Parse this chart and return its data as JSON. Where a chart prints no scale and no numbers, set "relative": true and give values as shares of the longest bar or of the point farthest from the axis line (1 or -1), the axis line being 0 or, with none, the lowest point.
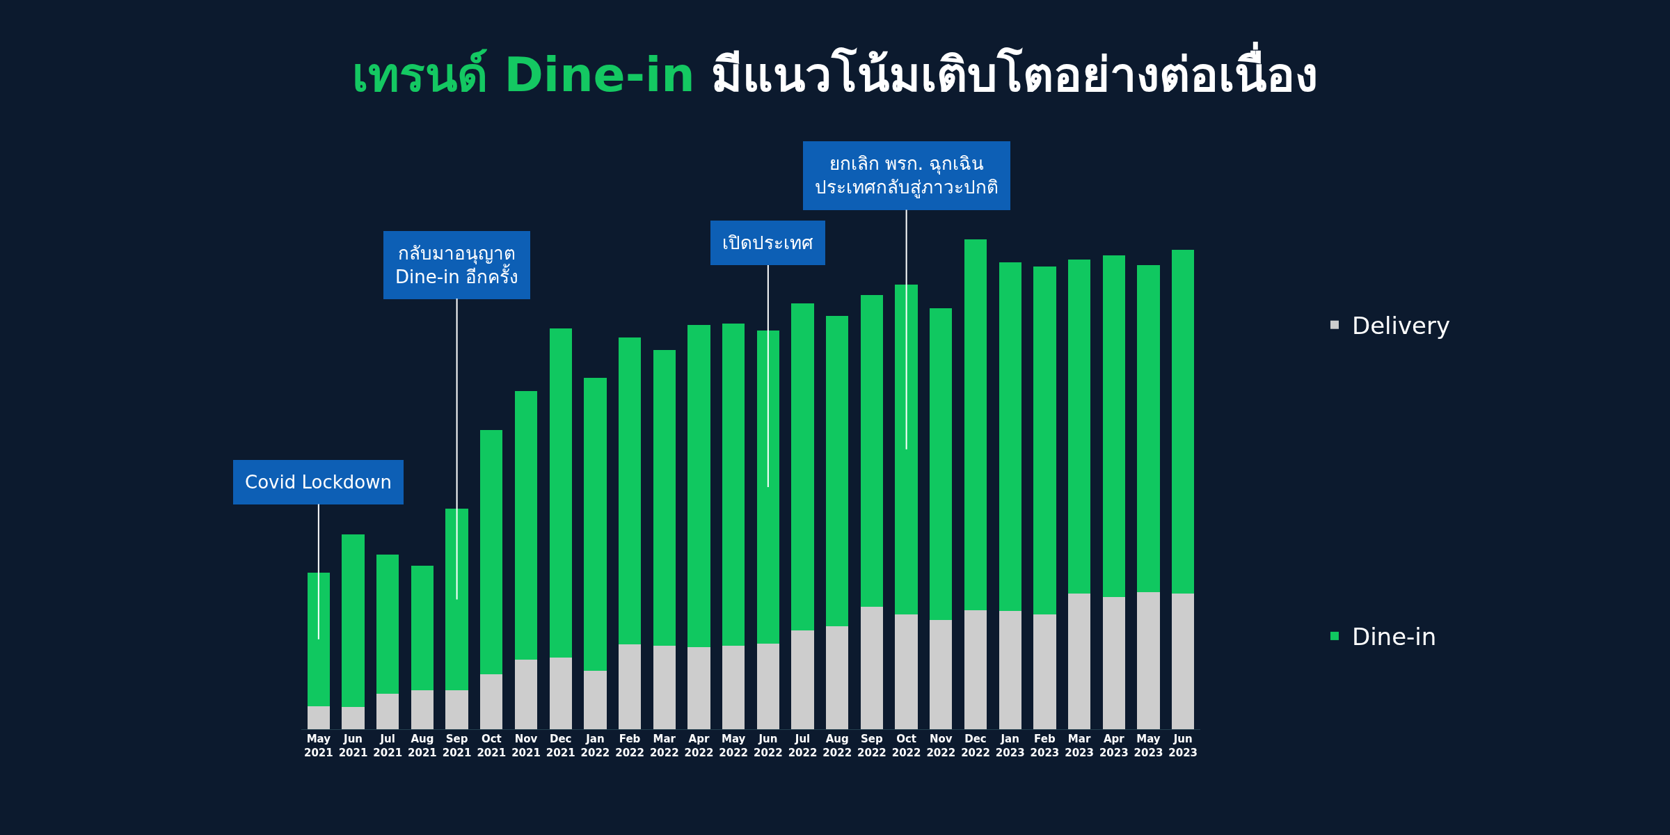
{
  "chart_data": {
    "type": "bar",
    "title": "เทรนด์ Dine-in มีแนวโน้มเติบโตอย่างต่อเนื่อง",
    "relative": true,
    "stacked": true,
    "legend": "right",
    "categories": [
      "May\n2021",
      "Jun\n2021",
      "Jul\n2021",
      "Aug\n2021",
      "Sep\n2021",
      "Oct\n2021",
      "Nov\n2021",
      "Dec\n2021",
      "Jan\n2022",
      "Feb\n2022",
      "Mar\n2022",
      "Apr\n2022",
      "May\n2022",
      "Jun\n2022",
      "Jul\n2022",
      "Aug\n2022",
      "Sep\n2022",
      "Oct\n2022",
      "Nov\n2022",
      "Dec\n2022",
      "Jan\n2023",
      "Feb\n2023",
      "Mar\n2023",
      "Apr\n2023",
      "May\n2023",
      "Jun\n2023"
    ],
    "series": [
      {
        "name": "Delivery",
        "color": "#cdcdcd",
        "values": [
          0.047,
          0.045,
          0.072,
          0.079,
          0.079,
          0.112,
          0.142,
          0.146,
          0.12,
          0.174,
          0.171,
          0.168,
          0.17,
          0.175,
          0.202,
          0.21,
          0.25,
          0.235,
          0.223,
          0.243,
          0.241,
          0.235,
          0.277,
          0.27,
          0.28,
          0.277
        ]
      },
      {
        "name": "Dine-in",
        "color": "#10c860",
        "values": [
          0.273,
          0.353,
          0.284,
          0.255,
          0.372,
          0.499,
          0.549,
          0.672,
          0.597,
          0.626,
          0.603,
          0.657,
          0.658,
          0.639,
          0.668,
          0.634,
          0.636,
          0.673,
          0.637,
          0.757,
          0.712,
          0.709,
          0.682,
          0.697,
          0.667,
          0.702
        ]
      }
    ],
    "annotations": [
      {
        "text": "Covid Lockdown",
        "x": "May\n2021"
      },
      {
        "text": "กลับมาอนุญาต\nDine-in อีกครั้ง",
        "x": "Sep\n2021"
      },
      {
        "text": "เปิดประเทศ",
        "x": "Jun\n2022"
      },
      {
        "text": "ยกเลิก พรก. ฉุกเฉิน\nประเทศกลับสู่ภาวะปกติ",
        "x": "Oct\n2022"
      }
    ]
  }
}
